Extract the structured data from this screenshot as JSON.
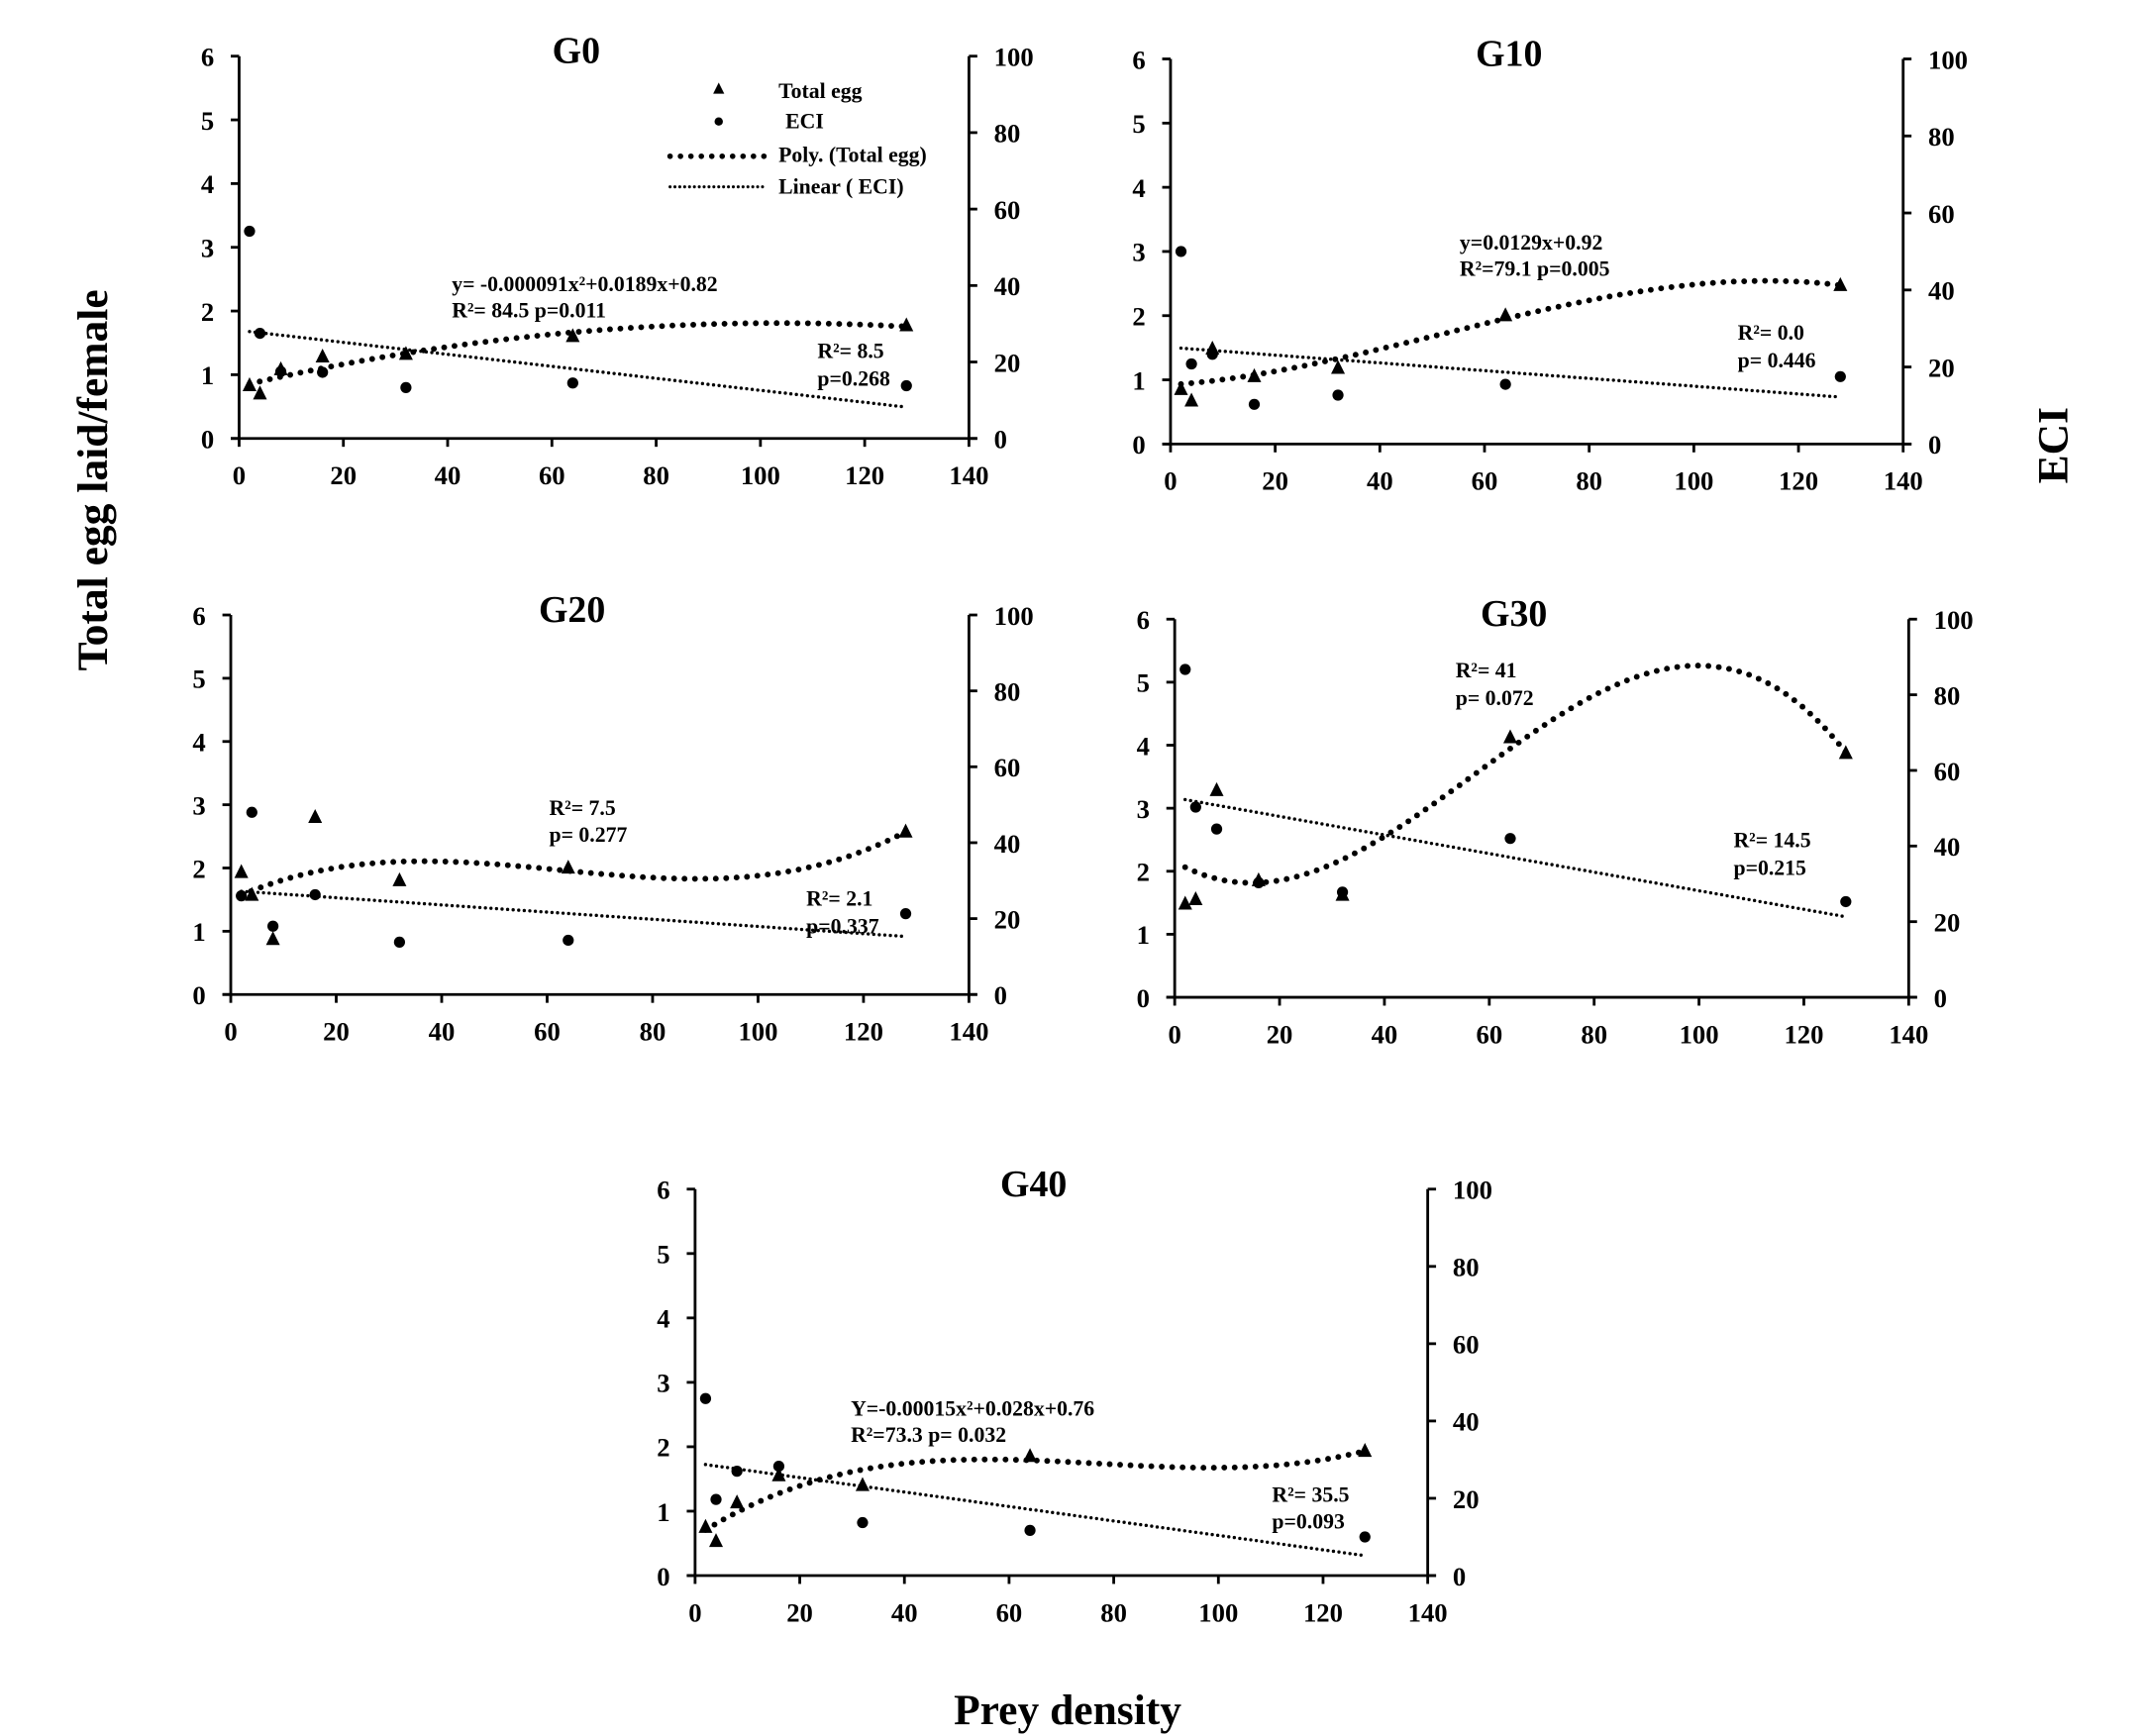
{
  "chart_data": {
    "type": "scatter",
    "ylabel": "Total egg laid/female",
    "y2label": "ECI",
    "xlabel": "Prey density",
    "xticks": [
      "0",
      "20",
      "40",
      "60",
      "80",
      "100",
      "120",
      "140"
    ],
    "yticks": [
      "0",
      "1",
      "2",
      "3",
      "4",
      "5",
      "6"
    ],
    "y2ticks": [
      "0",
      "20",
      "40",
      "60",
      "80",
      "100"
    ],
    "xlim": [
      0,
      140
    ],
    "ylim": [
      0,
      6
    ],
    "y2lim": [
      0,
      100
    ],
    "grid": false,
    "legend": {
      "placement": "top-right of G0",
      "entries": [
        "Total egg",
        "ECI",
        "Poly. (Total egg)",
        "Linear ( ECI)"
      ]
    },
    "panels": [
      {
        "title": "G0",
        "x": [
          2,
          4,
          8,
          16,
          32,
          64,
          128
        ],
        "total_egg": [
          0.83,
          0.7,
          1.08,
          1.28,
          1.32,
          1.6,
          1.77
        ],
        "eci": [
          54.2,
          27.5,
          17.5,
          17.3,
          13.3,
          14.5,
          13.8
        ],
        "poly_order": 2,
        "annotations": {
          "poly_eq": "y= -0.000091x²+0.0189x+0.82",
          "poly_stats": "R²= 84.5     p=0.011",
          "lin_r2": "R²= 8.5",
          "lin_p": "p=0.268"
        }
      },
      {
        "title": "G10",
        "x": [
          2,
          4,
          8,
          16,
          32,
          64,
          128
        ],
        "total_egg": [
          0.85,
          0.67,
          1.48,
          1.05,
          1.18,
          2.0,
          2.47
        ],
        "eci": [
          50.0,
          20.8,
          23.3,
          10.3,
          12.7,
          15.5,
          17.5
        ],
        "poly_order": 3,
        "annotations": {
          "poly_eq": "y=0.0129x+0.92",
          "poly_stats": "R²=79.1   p=0.005",
          "lin_r2": "R²= 0.0",
          "lin_p": "p= 0.446"
        }
      },
      {
        "title": "G20",
        "x": [
          2,
          4,
          8,
          16,
          32,
          64,
          128
        ],
        "total_egg": [
          1.93,
          1.57,
          0.87,
          2.8,
          1.8,
          2.0,
          2.57
        ],
        "eci": [
          26.0,
          48.0,
          18.0,
          26.3,
          13.8,
          14.3,
          21.3
        ],
        "poly_order": 3,
        "annotations": {
          "poly_stats": "R²= 7.5",
          "poly_p": "p= 0.277",
          "lin_r2": "R²= 2.1",
          "lin_p": "p=0.337"
        }
      },
      {
        "title": "G30",
        "x": [
          2,
          4,
          8,
          16,
          32,
          64,
          128
        ],
        "total_egg": [
          1.48,
          1.55,
          3.28,
          1.85,
          1.62,
          4.12,
          3.87
        ],
        "eci": [
          86.7,
          50.3,
          44.5,
          30.3,
          27.8,
          42.0,
          25.3
        ],
        "poly_order": 3,
        "annotations": {
          "poly_stats": "R²= 41",
          "poly_p": "p= 0.072",
          "lin_r2": "R²= 14.5",
          "lin_p": "p=0.215"
        }
      },
      {
        "title": "G40",
        "x": [
          2,
          4,
          8,
          16,
          32,
          64,
          128
        ],
        "total_egg": [
          0.75,
          0.53,
          1.13,
          1.55,
          1.4,
          1.85,
          1.93
        ],
        "eci": [
          45.8,
          19.7,
          27.0,
          28.3,
          13.7,
          11.7,
          10.0
        ],
        "poly_order": 3,
        "annotations": {
          "poly_eq": "Y=-0.00015x²+0.028x+0.76",
          "poly_stats": "R²=73.3      p= 0.032",
          "lin_r2": "R²= 35.5",
          "lin_p": "p=0.093"
        }
      }
    ]
  }
}
